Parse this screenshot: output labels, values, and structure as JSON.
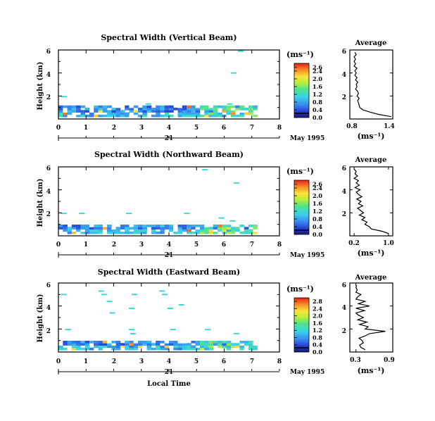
{
  "chart_data": [
    {
      "type": "heatmap",
      "title": "Spectral Width (Vertical Beam)",
      "ylabel": "Height (km)",
      "xlim": [
        0,
        8
      ],
      "ylim": [
        0,
        6
      ],
      "xticks": [
        "0",
        "1",
        "2",
        "3",
        "4",
        "5",
        "6",
        "7",
        "8"
      ],
      "yticks": [
        "2",
        "4",
        "6"
      ],
      "ytick_values": [
        2,
        4,
        6
      ],
      "date_day": "21",
      "date_label": "May 1995",
      "colorbar": {
        "unit": "(ms⁻¹)",
        "ticks": [
          "2.6",
          "2.4",
          "2.0",
          "1.6",
          "1.2",
          "0.8",
          "0.4",
          "0.0"
        ],
        "tick_values": [
          2.6,
          2.4,
          2.0,
          1.6,
          1.2,
          0.8,
          0.4,
          0.0
        ],
        "range": [
          0,
          2.8
        ]
      },
      "data_extent": {
        "time_end": 7.1,
        "dense_height_max": 1.0
      },
      "sparse_cells": [
        {
          "t": 0.2,
          "h": 1.95,
          "v": 1.2
        },
        {
          "t": 3.25,
          "h": 1.3,
          "v": 1.2
        },
        {
          "t": 6.35,
          "h": 4.0,
          "v": 1.2
        },
        {
          "t": 6.6,
          "h": 5.9,
          "v": 1.2
        },
        {
          "t": 6.2,
          "h": 1.3,
          "v": 1.2
        }
      ],
      "inset": {
        "title": "Average",
        "xlabel": "(ms⁻¹)",
        "xticks": [
          "0.8",
          "1.4"
        ],
        "xtick_values": [
          0.8,
          1.4
        ],
        "xlim": [
          0.8,
          1.4
        ],
        "yticks": [
          "2",
          "4",
          "6"
        ],
        "ytick_values": [
          2,
          4,
          6
        ],
        "ylim": [
          0,
          6
        ],
        "profile_h": [
          0.2,
          0.4,
          0.6,
          0.8,
          1.0,
          1.2,
          1.4,
          1.6,
          1.8,
          2.0,
          2.2,
          2.4,
          2.6,
          2.8,
          3.0,
          3.2,
          3.4,
          3.6,
          3.8,
          4.0,
          4.2,
          4.4,
          4.6,
          4.8,
          5.0,
          5.2,
          5.4,
          5.6,
          5.8
        ],
        "profile_v": [
          1.38,
          1.2,
          1.08,
          0.98,
          0.94,
          0.93,
          0.92,
          0.91,
          0.93,
          0.9,
          0.92,
          0.91,
          0.88,
          0.9,
          0.89,
          0.91,
          0.88,
          0.9,
          0.87,
          0.89,
          0.87,
          0.9,
          0.86,
          0.88,
          0.86,
          0.88,
          0.86,
          0.89,
          0.87
        ]
      }
    },
    {
      "type": "heatmap",
      "title": "Spectral Width (Northward Beam)",
      "ylabel": "Height (km)",
      "xlim": [
        0,
        8
      ],
      "ylim": [
        0,
        6
      ],
      "xticks": [
        "0",
        "1",
        "2",
        "3",
        "4",
        "5",
        "6",
        "7",
        "8"
      ],
      "yticks": [
        "2",
        "4",
        "6"
      ],
      "ytick_values": [
        2,
        4,
        6
      ],
      "date_day": "21",
      "date_label": "May 1995",
      "colorbar": {
        "unit": "(ms⁻¹)",
        "ticks": [
          "2.6",
          "2.4",
          "2.0",
          "1.6",
          "1.2",
          "0.8",
          "0.4",
          "0.0"
        ],
        "tick_values": [
          2.6,
          2.4,
          2.0,
          1.6,
          1.2,
          0.8,
          0.4,
          0.0
        ],
        "range": [
          0,
          2.8
        ]
      },
      "data_extent": {
        "time_end": 7.1,
        "dense_height_max": 0.8
      },
      "sparse_cells": [
        {
          "t": 0.2,
          "h": 1.95,
          "v": 1.2
        },
        {
          "t": 0.85,
          "h": 1.95,
          "v": 1.2
        },
        {
          "t": 2.55,
          "h": 1.95,
          "v": 1.2
        },
        {
          "t": 4.65,
          "h": 1.95,
          "v": 1.2
        },
        {
          "t": 5.3,
          "h": 5.75,
          "v": 1.2
        },
        {
          "t": 6.45,
          "h": 4.6,
          "v": 1.2
        },
        {
          "t": 5.9,
          "h": 1.55,
          "v": 1.2
        },
        {
          "t": 6.3,
          "h": 1.3,
          "v": 1.2
        }
      ],
      "inset": {
        "title": "Average",
        "xlabel": "(ms⁻¹)",
        "xticks": [
          "0.2",
          "1.0"
        ],
        "xtick_values": [
          0.2,
          1.0
        ],
        "xlim": [
          0.1,
          1.1
        ],
        "yticks": [
          "2",
          "4",
          "6"
        ],
        "ytick_values": [
          2,
          4,
          6
        ],
        "ylim": [
          0,
          6
        ],
        "profile_h": [
          0.2,
          0.4,
          0.6,
          0.8,
          1.0,
          1.2,
          1.4,
          1.6,
          1.8,
          2.0,
          2.2,
          2.4,
          2.6,
          2.8,
          3.0,
          3.2,
          3.4,
          3.6,
          3.8,
          4.0,
          4.2,
          4.4,
          4.6,
          4.8,
          5.0,
          5.2,
          5.4,
          5.6,
          5.8
        ],
        "profile_v": [
          1.0,
          0.85,
          0.6,
          0.55,
          0.45,
          0.5,
          0.38,
          0.45,
          0.32,
          0.42,
          0.35,
          0.28,
          0.4,
          0.3,
          0.36,
          0.26,
          0.38,
          0.3,
          0.25,
          0.34,
          0.22,
          0.32,
          0.25,
          0.3,
          0.2,
          0.28,
          0.22,
          0.25,
          0.2
        ]
      }
    },
    {
      "type": "heatmap",
      "title": "Spectral Width (Eastward Beam)",
      "ylabel": "Height (km)",
      "xlabel": "Local Time",
      "xlim": [
        0,
        8
      ],
      "ylim": [
        0,
        6
      ],
      "xticks": [
        "0",
        "1",
        "2",
        "3",
        "4",
        "5",
        "6",
        "7",
        "8"
      ],
      "yticks": [
        "2",
        "4",
        "6"
      ],
      "ytick_values": [
        2,
        4,
        6
      ],
      "date_day": "21",
      "date_label": "May 1995",
      "colorbar": {
        "unit": "(ms⁻¹)",
        "ticks": [
          "2.8",
          "2.4",
          "2.0",
          "1.6",
          "1.2",
          "0.8",
          "0.4",
          "0.0"
        ],
        "tick_values": [
          2.8,
          2.4,
          2.0,
          1.6,
          1.2,
          0.8,
          0.4,
          0.0
        ],
        "range": [
          0,
          3.0
        ]
      },
      "data_extent": {
        "time_end": 7.1,
        "dense_height_max": 0.9
      },
      "sparse_cells": [
        {
          "t": 0.2,
          "h": 5.0,
          "v": 1.2
        },
        {
          "t": 1.55,
          "h": 5.3,
          "v": 1.2
        },
        {
          "t": 1.65,
          "h": 5.0,
          "v": 1.2
        },
        {
          "t": 2.75,
          "h": 5.0,
          "v": 1.2
        },
        {
          "t": 3.75,
          "h": 5.3,
          "v": 1.2
        },
        {
          "t": 3.85,
          "h": 5.0,
          "v": 1.2
        },
        {
          "t": 1.85,
          "h": 4.4,
          "v": 1.2
        },
        {
          "t": 2.65,
          "h": 3.8,
          "v": 1.2
        },
        {
          "t": 4.45,
          "h": 4.1,
          "v": 1.2
        },
        {
          "t": 4.05,
          "h": 3.8,
          "v": 1.2
        },
        {
          "t": 1.95,
          "h": 3.4,
          "v": 1.2
        },
        {
          "t": 0.35,
          "h": 1.95,
          "v": 1.2
        },
        {
          "t": 2.65,
          "h": 1.95,
          "v": 1.2
        },
        {
          "t": 4.15,
          "h": 1.95,
          "v": 1.2
        },
        {
          "t": 5.4,
          "h": 1.95,
          "v": 1.2
        },
        {
          "t": 2.7,
          "h": 1.6,
          "v": 1.2
        },
        {
          "t": 6.45,
          "h": 1.6,
          "v": 1.2
        }
      ],
      "inset": {
        "title": "Average",
        "xlabel": "(ms⁻¹)",
        "xticks": [
          "0.3",
          "0.9"
        ],
        "xtick_values": [
          0.3,
          0.9
        ],
        "xlim": [
          0.2,
          0.9
        ],
        "yticks": [
          "2",
          "4",
          "6"
        ],
        "ytick_values": [
          2,
          4,
          6
        ],
        "ylim": [
          0,
          6
        ],
        "profile_h": [
          0.2,
          0.4,
          0.6,
          0.8,
          1.0,
          1.2,
          1.4,
          1.6,
          1.8,
          2.0,
          2.2,
          2.4,
          2.6,
          2.8,
          3.0,
          3.2,
          3.4,
          3.6,
          3.8,
          4.0,
          4.2,
          4.4,
          4.6,
          4.8,
          5.0,
          5.2,
          5.4,
          5.6,
          5.8
        ],
        "profile_v": [
          0.45,
          0.38,
          0.36,
          0.42,
          0.4,
          0.35,
          0.45,
          0.52,
          0.78,
          0.45,
          0.5,
          0.36,
          0.48,
          0.33,
          0.42,
          0.34,
          0.3,
          0.44,
          0.3,
          0.52,
          0.34,
          0.45,
          0.3,
          0.33,
          0.38,
          0.3,
          0.32,
          0.3,
          0.31
        ]
      }
    }
  ]
}
